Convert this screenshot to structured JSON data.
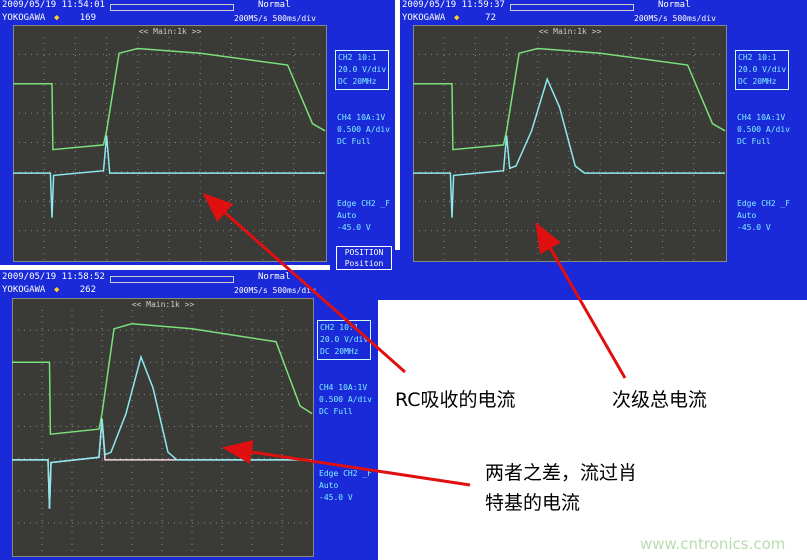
{
  "scopes": [
    {
      "datetime": "2009/05/19 11:54:01",
      "brand": "YOKOGAWA",
      "count": "169",
      "mode": "Normal",
      "rate": "200MS/s 500ms/div",
      "title": "<< Main:1k >>",
      "ch2": [
        "CH2 10:1",
        "20.0 V/div",
        "DC    20MHz"
      ],
      "ch4": [
        "CH4 10A:1V",
        "0.500 A/div",
        "DC    Full"
      ],
      "trig": [
        "Edge CH2 _F",
        "Auto",
        "-45.0 V"
      ]
    },
    {
      "datetime": "2009/05/19 11:59:37",
      "brand": "YOKOGAWA",
      "count": "72",
      "mode": "Normal",
      "rate": "200MS/s 500ms/div",
      "title": "<< Main:1k >>",
      "ch2": [
        "CH2 10:1",
        "20.0 V/div",
        "DC    20MHz"
      ],
      "ch4": [
        "CH4 10A:1V",
        "0.500 A/div",
        "DC    Full"
      ],
      "trig": [
        "Edge CH2 _F",
        "Auto",
        "-45.0 V"
      ]
    },
    {
      "datetime": "2009/05/19 11:58:52",
      "brand": "YOKOGAWA",
      "count": "262",
      "mode": "Normal",
      "rate": "200MS/s 500ms/div",
      "title": "<< Main:1k >>",
      "ch2": [
        "CH2 10:1",
        "20.0 V/div",
        "DC    20MHz"
      ],
      "ch4": [
        "CH4 10A:1V",
        "0.500 A/div",
        "DC    Full"
      ],
      "trig": [
        "Edge CH2 _F",
        "Auto",
        "-45.0 V"
      ]
    }
  ],
  "position": {
    "title": "POSITION",
    "label": "Position"
  },
  "annotations": {
    "rc": "RC吸收的电流",
    "secondary": "次级总电流",
    "diff1": "两者之差，流过肖",
    "diff2": "特基的电流"
  },
  "watermark": "www.cntronics.com",
  "colors": {
    "screen": "#1a2ad8",
    "ch2_trace": "#7be07b",
    "ch4_trace": "#8fe8f0",
    "arrow": "#e01010"
  }
}
